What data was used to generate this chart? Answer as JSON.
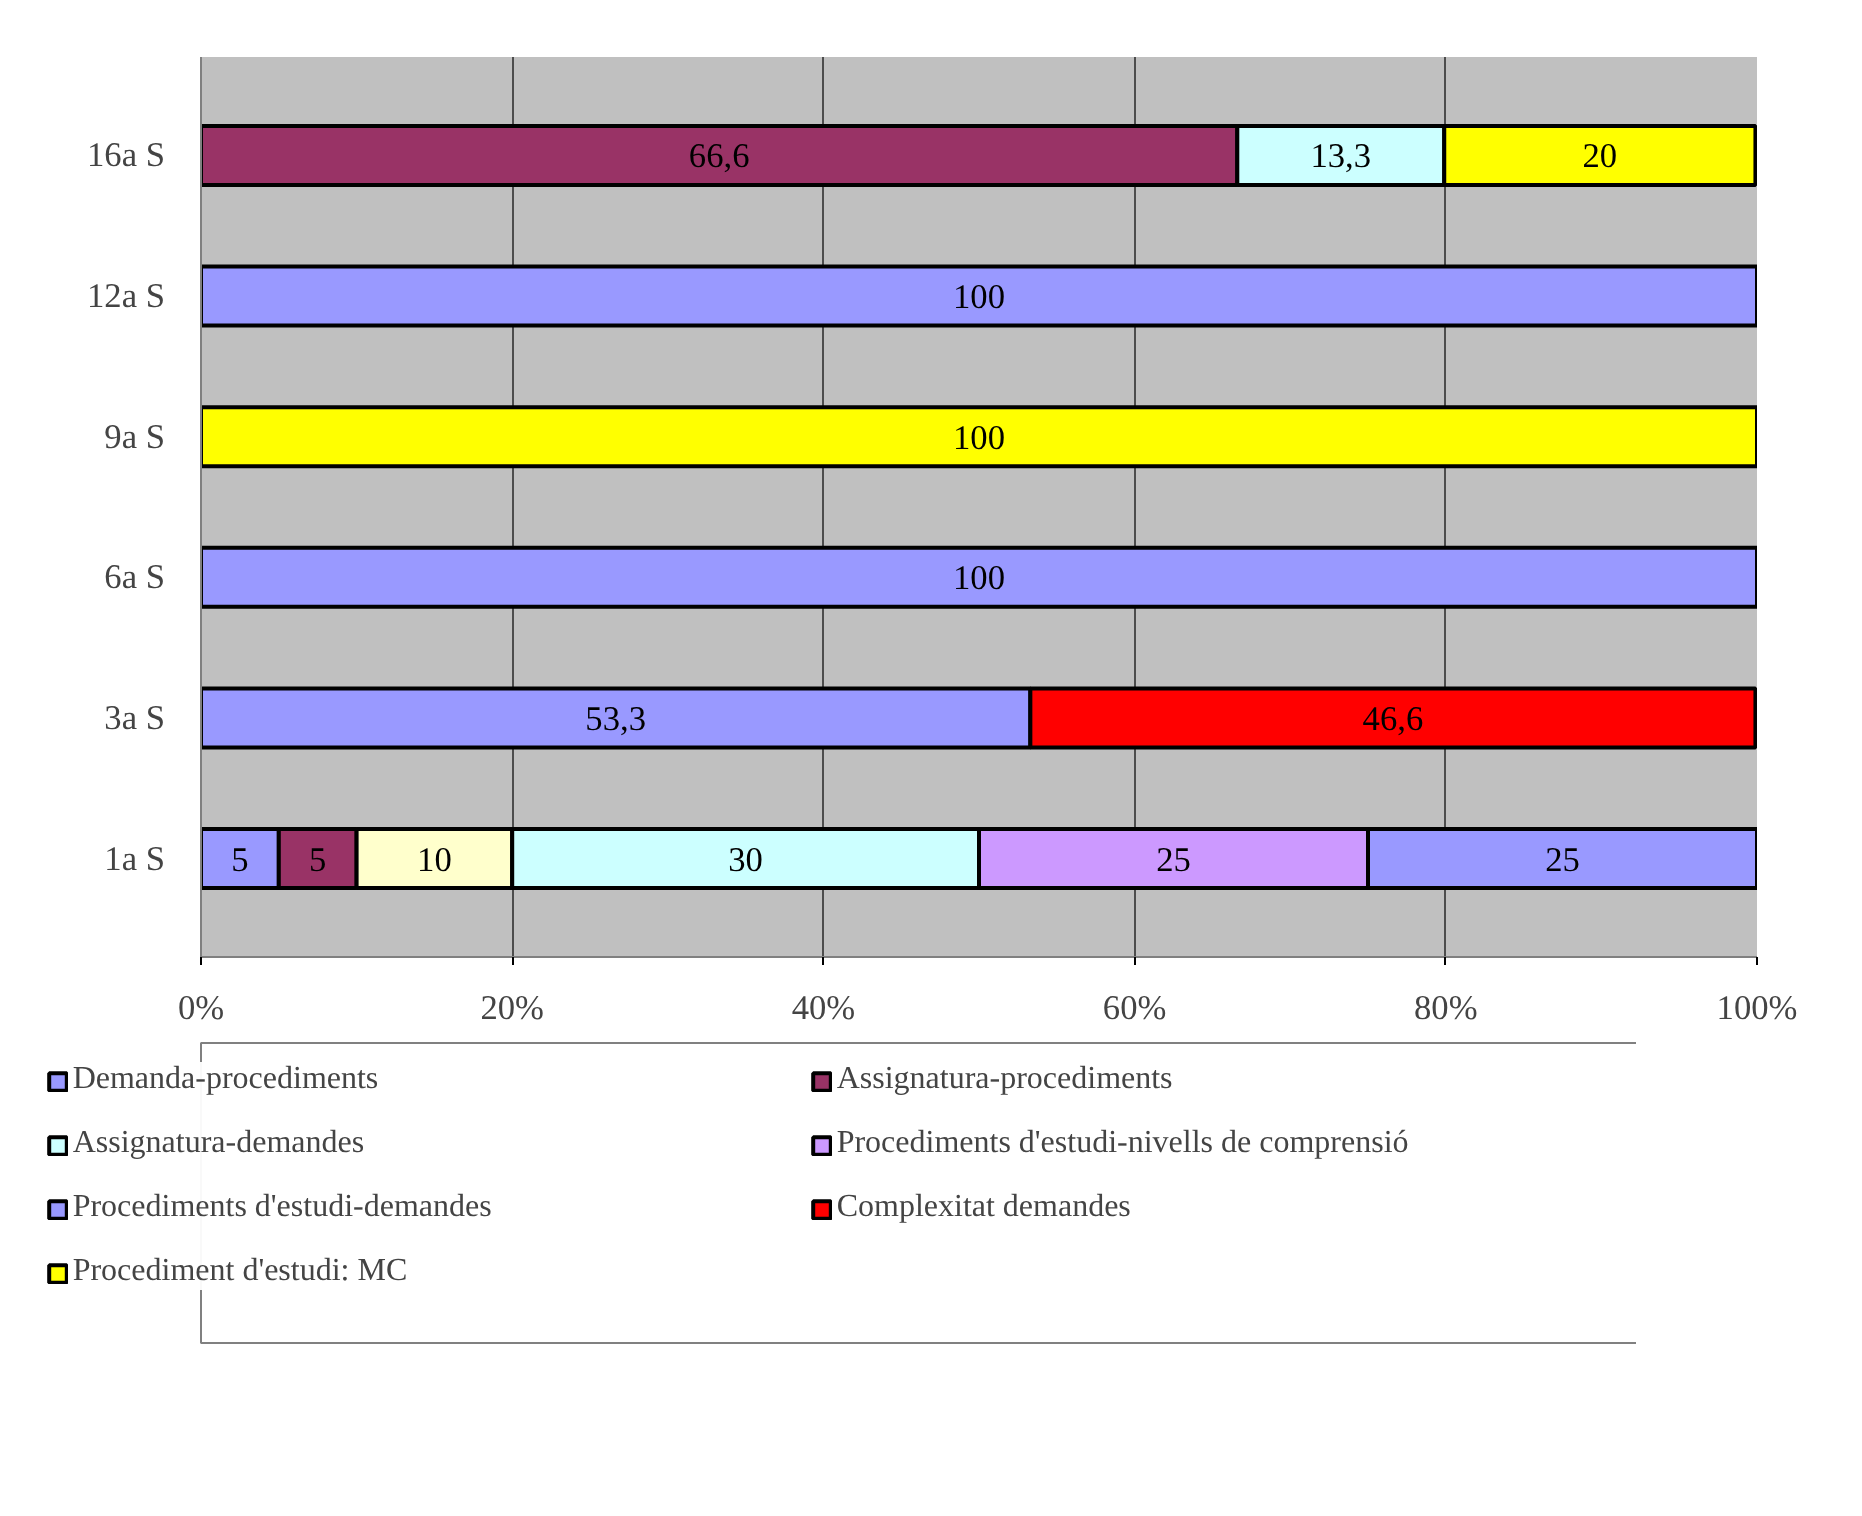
{
  "chart_data": {
    "type": "bar",
    "orientation": "horizontal",
    "stacked": true,
    "categories": [
      "16a S",
      "12a S",
      "9a S",
      "6a S",
      "3a S",
      "1a S"
    ],
    "series": [
      {
        "name": "Demanda-procediments",
        "color": "#9999ff",
        "values": [
          null,
          100,
          null,
          100,
          53.3,
          5
        ],
        "value_labels": [
          null,
          "100",
          null,
          "100",
          "53,3",
          "5"
        ]
      },
      {
        "name": "Assignatura-procediments",
        "color": "#993366",
        "values": [
          66.6,
          null,
          null,
          null,
          null,
          5
        ],
        "value_labels": [
          "66,6",
          null,
          null,
          null,
          null,
          "5"
        ]
      },
      {
        "color": "#ffffcc",
        "values": [
          null,
          null,
          null,
          null,
          null,
          10
        ],
        "value_labels": [
          null,
          null,
          null,
          null,
          null,
          "10"
        ]
      },
      {
        "name": "Assignatura-demandes",
        "color": "#ccffff",
        "values": [
          13.3,
          null,
          null,
          null,
          null,
          30
        ],
        "value_labels": [
          "13,3",
          null,
          null,
          null,
          null,
          "30"
        ]
      },
      {
        "name": "Procediments d'estudi-nivells de comprensió",
        "color": "#cc99ff",
        "values": [
          null,
          null,
          null,
          null,
          null,
          25
        ],
        "value_labels": [
          null,
          null,
          null,
          null,
          null,
          "25"
        ]
      },
      {
        "name": "Procediments d'estudi-demandes",
        "color": "#9999ff",
        "values": [
          null,
          null,
          null,
          null,
          null,
          25
        ],
        "value_labels": [
          null,
          null,
          null,
          null,
          null,
          "25"
        ]
      },
      {
        "name": "Complexitat demandes",
        "color": "#ff0000",
        "values": [
          null,
          null,
          null,
          null,
          46.6,
          null
        ],
        "value_labels": [
          null,
          null,
          null,
          null,
          "46,6",
          null
        ]
      },
      {
        "name": "Procediment d'estudi: MC",
        "color": "#ffff00",
        "values": [
          20,
          null,
          100,
          null,
          null,
          null
        ],
        "value_labels": [
          "20",
          null,
          "100",
          null,
          null,
          null
        ]
      }
    ],
    "xlim": [
      0,
      100
    ],
    "xticks": [
      {
        "value": 0,
        "label": "0%"
      },
      {
        "value": 20,
        "label": "20%"
      },
      {
        "value": 40,
        "label": "40%"
      },
      {
        "value": 60,
        "label": "60%"
      },
      {
        "value": 80,
        "label": "80%"
      },
      {
        "value": 100,
        "label": "100%"
      }
    ],
    "grid": "x",
    "legend": "bottom"
  }
}
